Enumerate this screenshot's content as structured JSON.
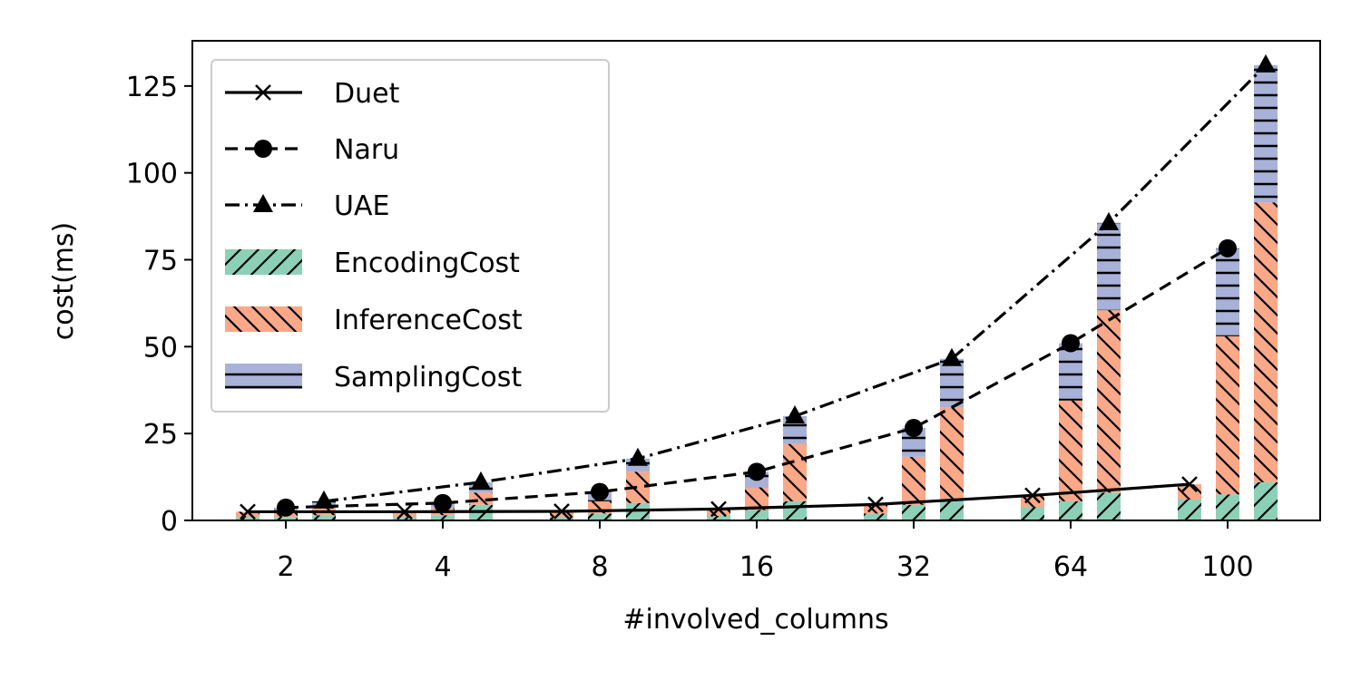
{
  "chart_data": {
    "type": "bar",
    "xlabel": "#involved_columns",
    "ylabel": "cost(ms)",
    "categories": [
      "2",
      "4",
      "8",
      "16",
      "32",
      "64",
      "100"
    ],
    "ylim": [
      0,
      138
    ],
    "yticks": [
      0,
      25,
      50,
      75,
      100,
      125
    ],
    "grid": false,
    "legend_position": "upper-left",
    "line_series": [
      {
        "name": "Duet",
        "marker": "x",
        "linestyle": "solid",
        "values": [
          2.5,
          2.5,
          2.6,
          3.3,
          4.6,
          7.2,
          10.4
        ]
      },
      {
        "name": "Naru",
        "marker": "circle",
        "linestyle": "dashed",
        "values": [
          3.7,
          5.0,
          8.2,
          14.0,
          26.6,
          51.0,
          78.3
        ]
      },
      {
        "name": "UAE",
        "marker": "triangle",
        "linestyle": "dashdot",
        "values": [
          5.5,
          11.0,
          17.8,
          30.0,
          46.5,
          85.6,
          131.0
        ]
      }
    ],
    "bar_components": [
      {
        "name": "EncodingCost",
        "color": "#8dd0b8",
        "hatch": "forward"
      },
      {
        "name": "InferenceCost",
        "color": "#f9a888",
        "hatch": "backward"
      },
      {
        "name": "SamplingCost",
        "color": "#a8b2d8",
        "hatch": "horizontal"
      }
    ],
    "bar_groups": [
      {
        "label": "Duet",
        "stacks": [
          {
            "EncodingCost": 1.0,
            "InferenceCost": 1.5,
            "SamplingCost": 0
          },
          {
            "EncodingCost": 1.0,
            "InferenceCost": 1.5,
            "SamplingCost": 0
          },
          {
            "EncodingCost": 1.0,
            "InferenceCost": 1.6,
            "SamplingCost": 0
          },
          {
            "EncodingCost": 1.3,
            "InferenceCost": 2.0,
            "SamplingCost": 0
          },
          {
            "EncodingCost": 2.0,
            "InferenceCost": 2.6,
            "SamplingCost": 0
          },
          {
            "EncodingCost": 3.8,
            "InferenceCost": 3.4,
            "SamplingCost": 0
          },
          {
            "EncodingCost": 6.0,
            "InferenceCost": 4.4,
            "SamplingCost": 0
          }
        ]
      },
      {
        "label": "Naru",
        "stacks": [
          {
            "EncodingCost": 1.0,
            "InferenceCost": 2.0,
            "SamplingCost": 0.7
          },
          {
            "EncodingCost": 1.5,
            "InferenceCost": 2.0,
            "SamplingCost": 1.5
          },
          {
            "EncodingCost": 2.0,
            "InferenceCost": 3.5,
            "SamplingCost": 2.7
          },
          {
            "EncodingCost": 3.0,
            "InferenceCost": 6.5,
            "SamplingCost": 4.5
          },
          {
            "EncodingCost": 4.5,
            "InferenceCost": 13.8,
            "SamplingCost": 8.3
          },
          {
            "EncodingCost": 5.5,
            "InferenceCost": 29.0,
            "SamplingCost": 16.5
          },
          {
            "EncodingCost": 7.5,
            "InferenceCost": 45.5,
            "SamplingCost": 25.3
          }
        ]
      },
      {
        "label": "UAE",
        "stacks": [
          {
            "EncodingCost": 1.5,
            "InferenceCost": 2.5,
            "SamplingCost": 1.5
          },
          {
            "EncodingCost": 4.5,
            "InferenceCost": 3.5,
            "SamplingCost": 3.0
          },
          {
            "EncodingCost": 5.0,
            "InferenceCost": 9.0,
            "SamplingCost": 3.8
          },
          {
            "EncodingCost": 5.5,
            "InferenceCost": 16.5,
            "SamplingCost": 8.0
          },
          {
            "EncodingCost": 6.0,
            "InferenceCost": 26.5,
            "SamplingCost": 14.0
          },
          {
            "EncodingCost": 8.0,
            "InferenceCost": 52.5,
            "SamplingCost": 25.1
          },
          {
            "EncodingCost": 11.0,
            "InferenceCost": 80.5,
            "SamplingCost": 39.5
          }
        ]
      }
    ]
  }
}
